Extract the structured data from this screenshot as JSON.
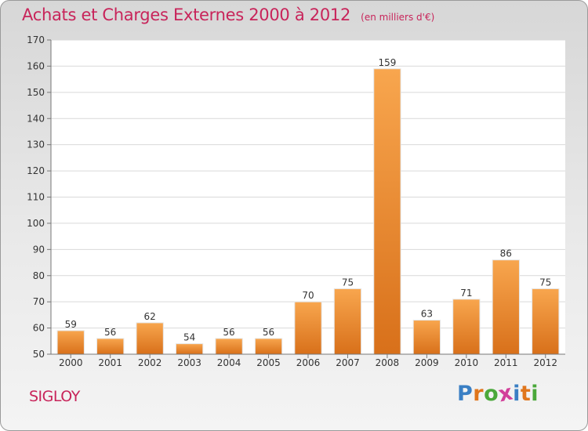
{
  "header": {
    "title": "Achats et Charges Externes 2000 à 2012",
    "unit": "(en milliers d'€)"
  },
  "commune": "SIGLOY",
  "logo": {
    "letters": [
      "P",
      "r",
      "o",
      "x",
      "i",
      "t",
      "i"
    ],
    "colors": [
      "#3a7fc4",
      "#e0761c",
      "#4aa83a",
      "#d23f9a",
      "#3a7fc4",
      "#e0761c",
      "#4aa83a"
    ]
  },
  "colors": {
    "bar": "#f08a24",
    "title": "#c8245a"
  },
  "chart_data": {
    "type": "bar",
    "categories": [
      "2000",
      "2001",
      "2002",
      "2003",
      "2004",
      "2005",
      "2006",
      "2007",
      "2008",
      "2009",
      "2010",
      "2011",
      "2012"
    ],
    "values": [
      59,
      56,
      62,
      54,
      56,
      56,
      70,
      75,
      159,
      63,
      71,
      86,
      75
    ],
    "value_labels": [
      "59",
      "56",
      "62",
      "54",
      "56",
      "56",
      "70",
      "75",
      "159",
      "63",
      "71",
      "86",
      "75"
    ],
    "title": "Achats et Charges Externes 2000 à 2012",
    "ylim": [
      50,
      170
    ],
    "yticks": [
      50,
      60,
      70,
      80,
      90,
      100,
      110,
      120,
      130,
      140,
      150,
      160,
      170
    ],
    "ytick_labels": [
      "50",
      "60",
      "70",
      "80",
      "90",
      "100",
      "110",
      "120",
      "130",
      "140",
      "150",
      "160",
      "170"
    ],
    "grid": true
  }
}
